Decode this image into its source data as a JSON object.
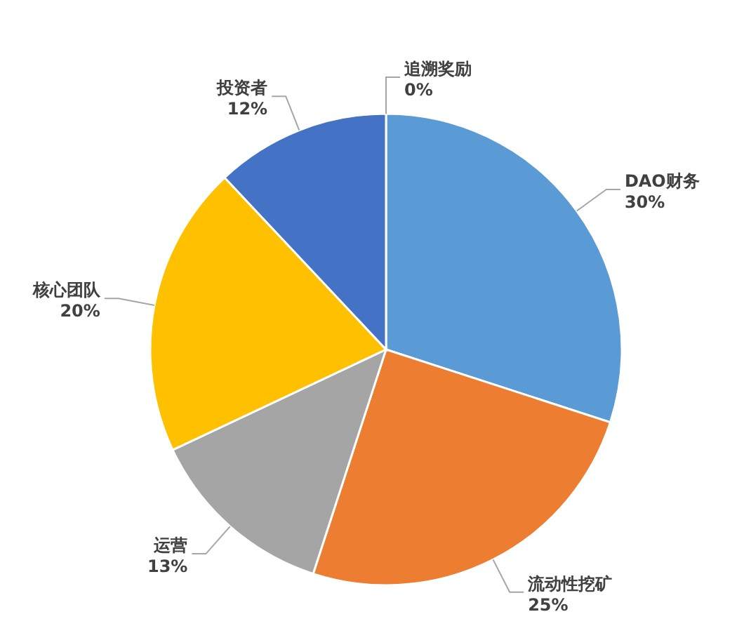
{
  "chart_data": {
    "type": "pie",
    "categories": [
      "追溯奖励",
      "DAO财务",
      "流动性挖矿",
      "运营",
      "核心团队",
      "投资者"
    ],
    "values": [
      0,
      30,
      25,
      13,
      20,
      12
    ],
    "value_labels": [
      "0%",
      "30%",
      "25%",
      "13%",
      "20%",
      "12%"
    ],
    "colors": [
      "#70ad47",
      "#5b9bd5",
      "#ed7d31",
      "#a5a5a5",
      "#ffc000",
      "#4472c4"
    ],
    "legend": false
  }
}
